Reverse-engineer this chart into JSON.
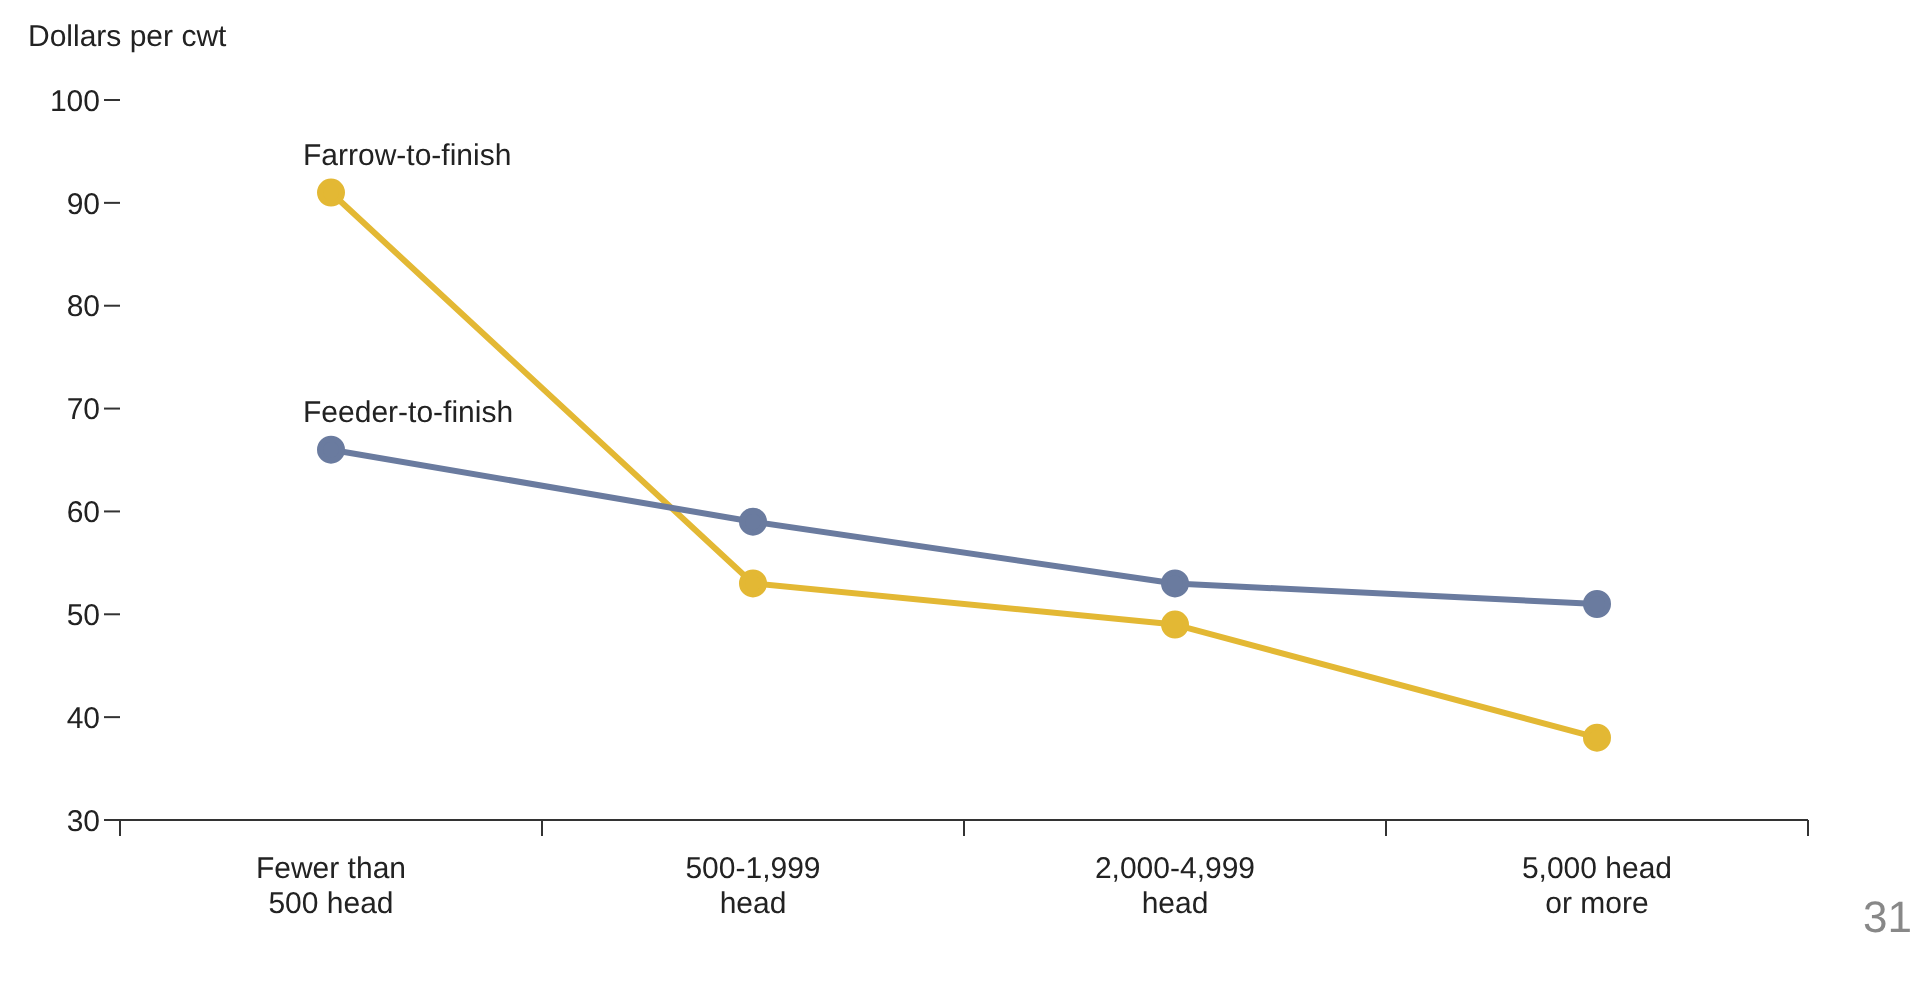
{
  "chart_data": {
    "type": "line",
    "ylabel": "Dollars per cwt",
    "categories": [
      "Fewer than\n500 head",
      "500-1,999\nhead",
      "2,000-4,999\nhead",
      "5,000 head\nor more"
    ],
    "series": [
      {
        "name": "Farrow-to-finish",
        "color": "#e3b834",
        "values": [
          91,
          53,
          49,
          38
        ]
      },
      {
        "name": "Feeder-to-finish",
        "color": "#6a7b9f",
        "values": [
          66,
          59,
          53,
          51
        ]
      }
    ],
    "ylim": [
      30,
      100
    ],
    "yticks": [
      30,
      40,
      50,
      60,
      70,
      80,
      90,
      100
    ],
    "grid": false,
    "legend": false,
    "marker": "circle",
    "line_style": "solid",
    "annotations": [
      "31"
    ]
  }
}
